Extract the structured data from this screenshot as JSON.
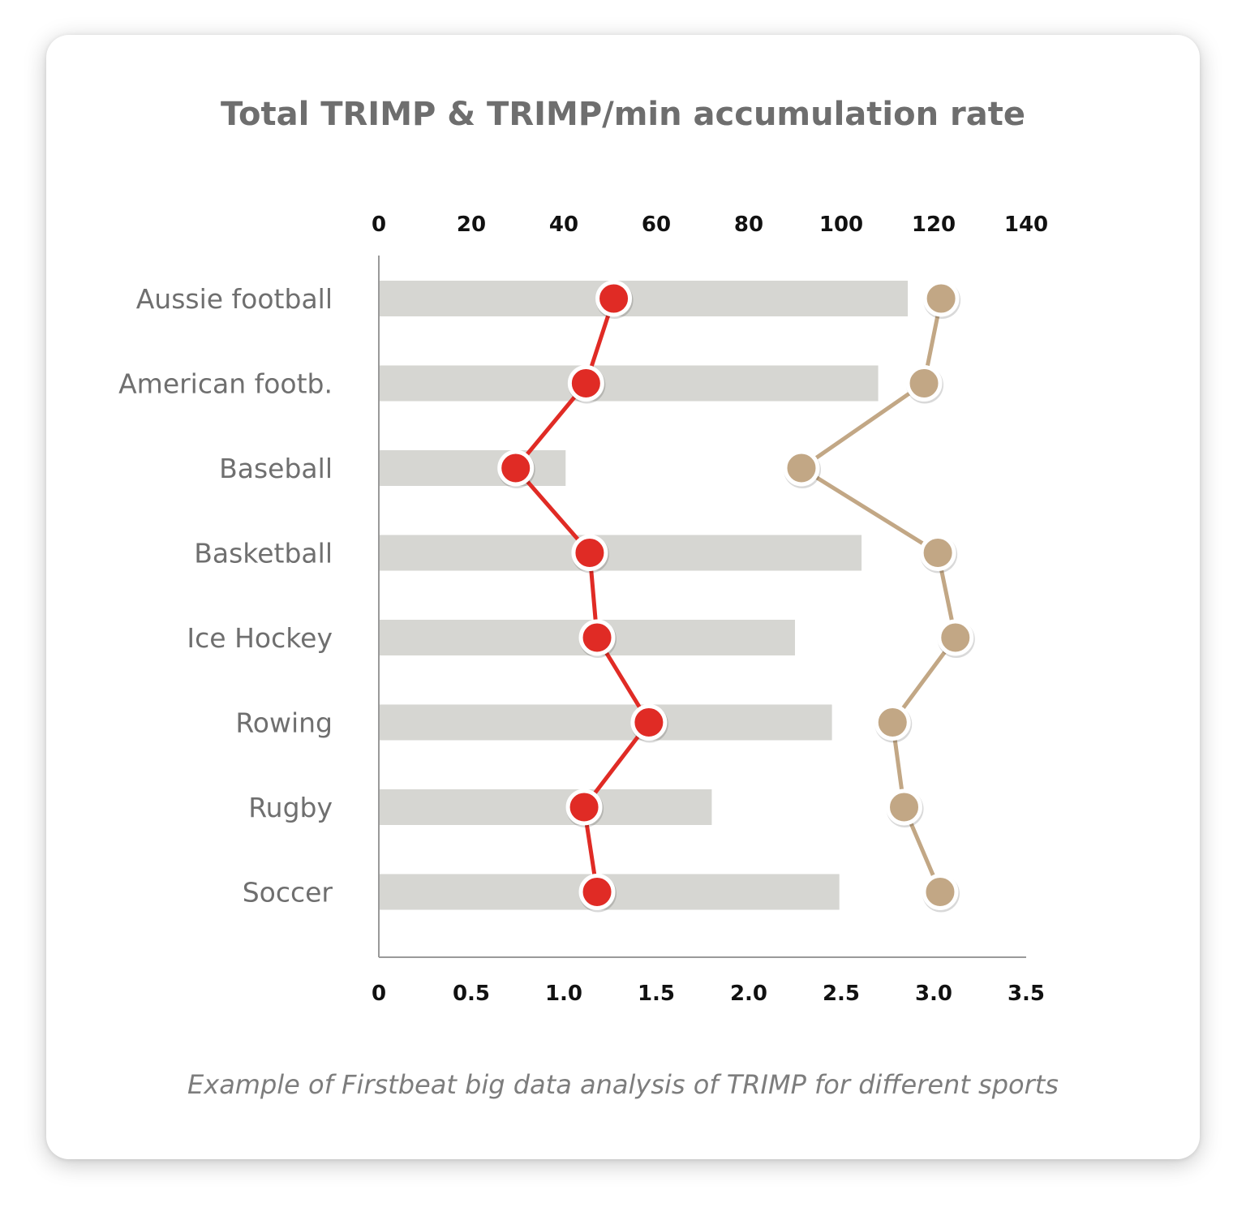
{
  "chart_data": {
    "type": "bar",
    "title": "Total TRIMP & TRIMP/min accumulation rate",
    "caption": "Example of Firstbeat big data analysis of TRIMP for different sports",
    "categories": [
      "Aussie football",
      "American footb.",
      "Baseball",
      "Basketball",
      "Ice Hockey",
      "Rowing",
      "Rugby",
      "Soccer"
    ],
    "top_axis": {
      "ticks": [
        "0",
        "20",
        "40",
        "60",
        "80",
        "100",
        "120",
        "140"
      ],
      "range": [
        0,
        140
      ]
    },
    "bottom_axis": {
      "ticks": [
        "0",
        "0.5",
        "1.0",
        "1.5",
        "2.0",
        "2.5",
        "3.0",
        "3.5"
      ],
      "range": [
        0,
        3.5
      ]
    },
    "series": [
      {
        "name": "bars",
        "type": "bar",
        "axis": "bottom",
        "values": [
          2.86,
          2.7,
          1.01,
          2.61,
          2.25,
          2.45,
          1.8,
          2.49
        ]
      },
      {
        "name": "red",
        "type": "line",
        "axis": "bottom",
        "values": [
          1.27,
          1.12,
          0.74,
          1.14,
          1.18,
          1.46,
          1.11,
          1.18
        ]
      },
      {
        "name": "tan",
        "type": "line",
        "axis": "top",
        "values": [
          121.6,
          117.9,
          91.4,
          120.9,
          124.7,
          111.1,
          113.6,
          121.4
        ]
      }
    ],
    "colors": {
      "bar": "#d6d6d2",
      "red": "#e02b25",
      "tan": "#c2a785",
      "axis": "#9a9a9a"
    }
  }
}
